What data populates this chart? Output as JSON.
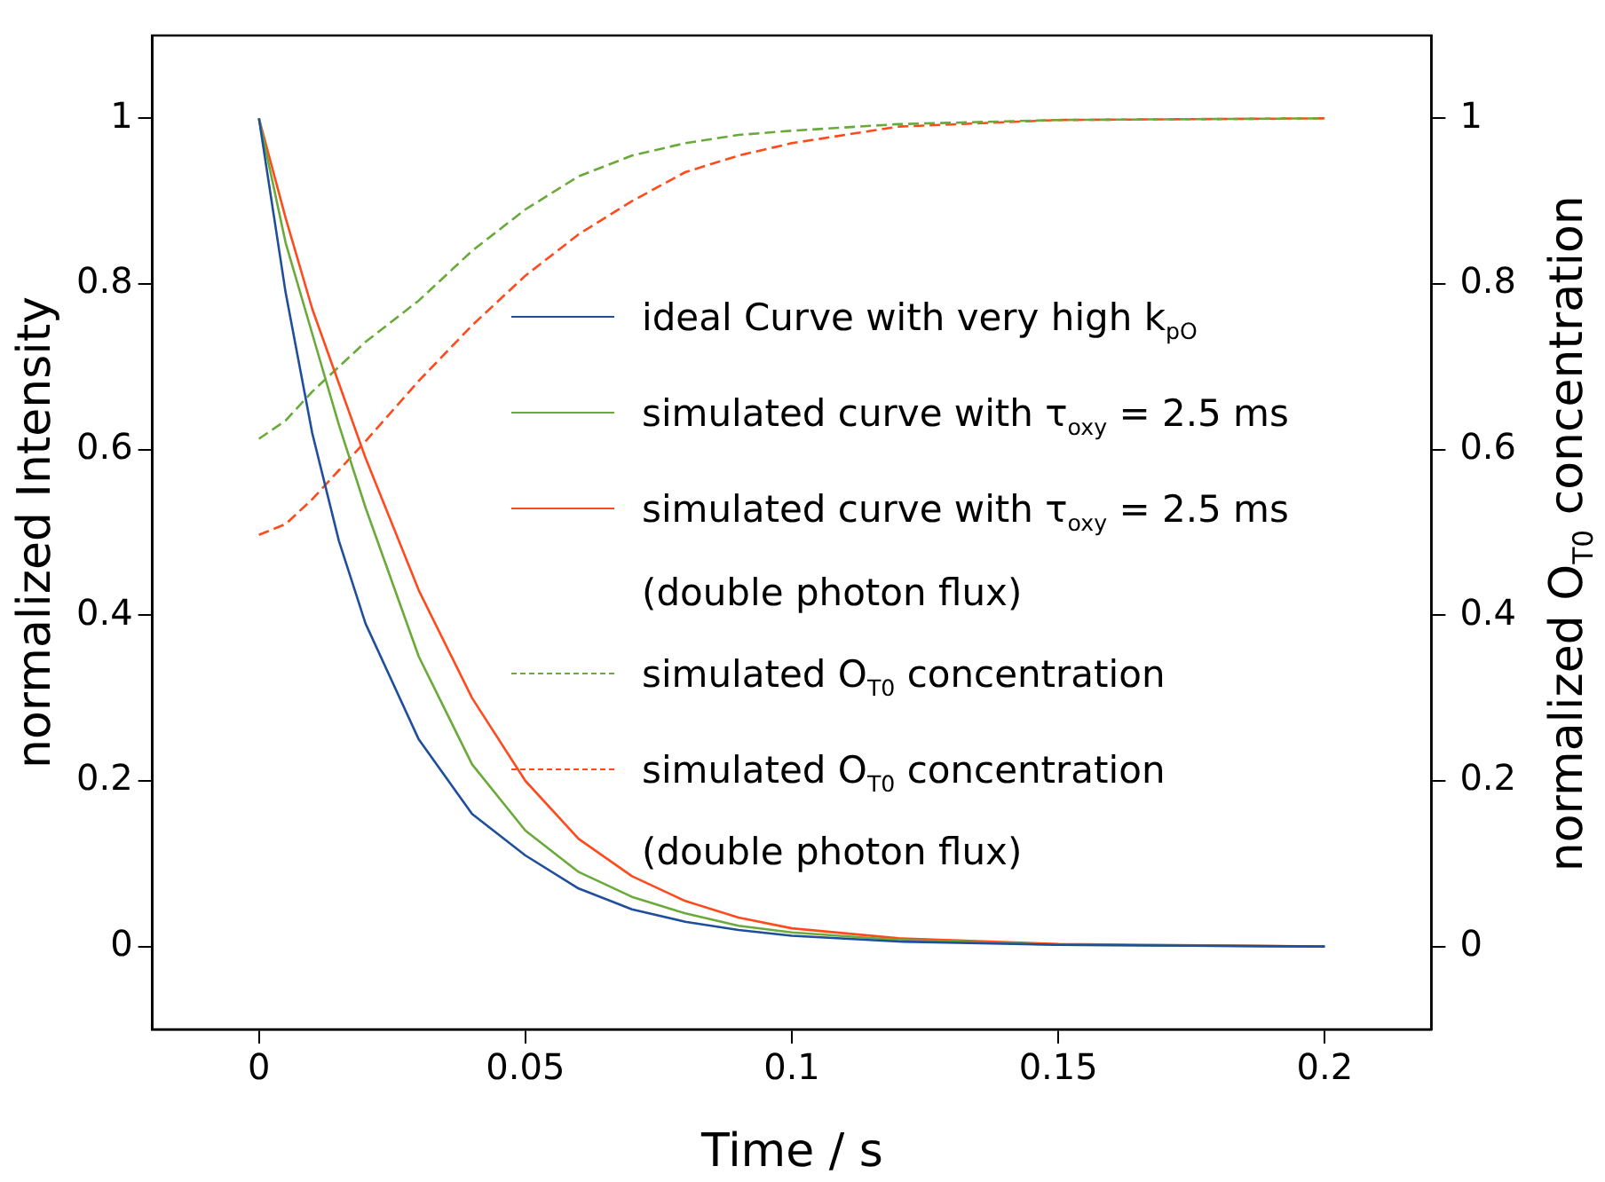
{
  "chart_data": {
    "type": "line",
    "xlabel": "Time / s",
    "ylabel": "normalized Intensity",
    "y2label": "normalized O$_{T0}$ concentration",
    "x": [
      0,
      0.005,
      0.01,
      0.015,
      0.02,
      0.03,
      0.04,
      0.05,
      0.06,
      0.07,
      0.08,
      0.09,
      0.1,
      0.12,
      0.15,
      0.2
    ],
    "series": [
      {
        "name": "ideal Curve with very high k$_{pO}$",
        "color": "#1f4f9c",
        "values": [
          1,
          0.79,
          0.62,
          0.49,
          0.39,
          0.25,
          0.16,
          0.11,
          0.07,
          0.045,
          0.03,
          0.02,
          0.013,
          0.006,
          0.002,
          0
        ]
      },
      {
        "name": "simulated curve with τ$_{oxy}$ = 2.5 ms",
        "color": "#6aaa3a",
        "values": [
          1,
          0.85,
          0.74,
          0.63,
          0.53,
          0.35,
          0.22,
          0.14,
          0.09,
          0.06,
          0.04,
          0.025,
          0.017,
          0.008,
          0.002,
          0
        ]
      },
      {
        "name": "simulated curve with τ$_{oxy}$ = 2.5 ms (double photon flux)",
        "color": "#ff4a1c",
        "values": [
          1,
          0.88,
          0.77,
          0.68,
          0.59,
          0.43,
          0.3,
          0.2,
          0.13,
          0.085,
          0.055,
          0.035,
          0.022,
          0.01,
          0.003,
          0
        ]
      },
      {
        "name": "simulated O$_{T0}$ concentration",
        "color": "#6aaa3a",
        "axis": "y2",
        "line_style": "dashed",
        "values": [
          0.613,
          0.635,
          0.67,
          0.7,
          0.73,
          0.78,
          0.84,
          0.89,
          0.93,
          0.955,
          0.97,
          0.98,
          0.985,
          0.993,
          0.998,
          1
        ]
      },
      {
        "name": "simulated O$_{T0}$ concentration (double photon flux)",
        "color": "#ff4a1c",
        "axis": "y2",
        "line_style": "dashed",
        "values": [
          0.497,
          0.51,
          0.54,
          0.575,
          0.61,
          0.683,
          0.75,
          0.81,
          0.86,
          0.9,
          0.935,
          0.955,
          0.97,
          0.99,
          0.998,
          1
        ]
      }
    ],
    "xlim": [
      -0.02,
      0.22
    ],
    "xticks": [
      0,
      0.05,
      0.1,
      0.15,
      0.2
    ],
    "ylim": [
      -0.1,
      1.1
    ],
    "yticks": [
      0,
      0.2,
      0.4,
      0.6,
      0.8,
      1
    ],
    "y2lim": [
      -0.1,
      1.1
    ],
    "y2ticks": [
      0,
      0.2,
      0.4,
      0.6,
      0.8,
      1
    ],
    "grid": false,
    "legend": "right",
    "marker": "none",
    "line_style": "solid"
  }
}
